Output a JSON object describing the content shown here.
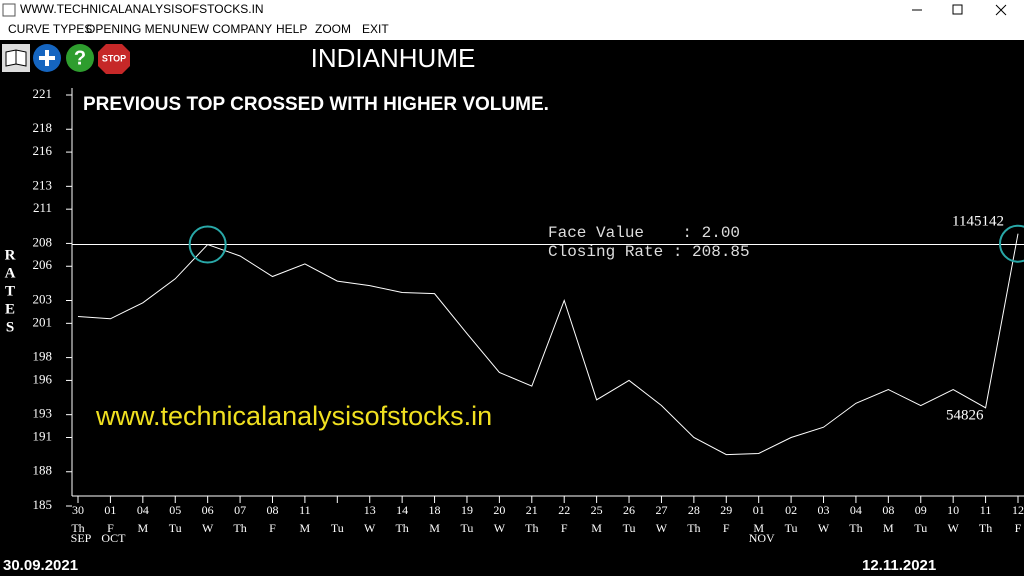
{
  "window": {
    "title": "WWW.TECHNICALANALYSISOFSTOCKS.IN"
  },
  "menu": [
    "CURVE TYPES",
    "OPENING MENU",
    "NEW COMPANY",
    "HELP",
    "ZOOM",
    "EXIT"
  ],
  "toolbar": {
    "stop": "STOP"
  },
  "chart_data": {
    "type": "line",
    "title": "INDIANHUME",
    "y_label": "RATES",
    "annotations": {
      "headline": "PREVIOUS TOP CROSSED WITH HIGHER VOLUME.",
      "website": "www.technicalanalysisofstocks.in",
      "face_value": "Face Value    : 2.00",
      "closing_rate": "Closing Rate : 208.85",
      "volume_last": "1145142",
      "volume_previous": "54826"
    },
    "start_date": "30.09.2021",
    "end_date": "12.11.2021",
    "categories": [
      "30",
      "01",
      "04",
      "05",
      "06",
      "07",
      "08",
      "11",
      null,
      "13",
      "14",
      "18",
      "19",
      "20",
      "21",
      "22",
      "25",
      "26",
      "27",
      "28",
      "29",
      "01",
      "02",
      "03",
      "04",
      "08",
      "09",
      "10",
      "11",
      "12"
    ],
    "weekdays": [
      "Th",
      "F",
      "M",
      "Tu",
      "W",
      "Th",
      "F",
      "M",
      "Tu",
      "W",
      "Th",
      "M",
      "Tu",
      "W",
      "Th",
      "F",
      "M",
      "Tu",
      "W",
      "Th",
      "F",
      "M",
      "Tu",
      "W",
      "Th",
      "M",
      "Tu",
      "W",
      "Th",
      "F"
    ],
    "months": [
      "SEP",
      "OCT",
      null,
      null,
      null,
      null,
      null,
      null,
      null,
      null,
      null,
      null,
      null,
      null,
      null,
      null,
      null,
      null,
      null,
      null,
      null,
      "NOV",
      null,
      null,
      null,
      null,
      null,
      null,
      null,
      null
    ],
    "values": [
      201.6,
      201.4,
      202.8,
      204.9,
      207.9,
      206.9,
      205.1,
      206.2,
      204.7,
      204.3,
      203.7,
      203.6,
      200.1,
      196.7,
      195.5,
      203.0,
      194.3,
      196.0,
      193.8,
      191.0,
      189.5,
      189.6,
      191.0,
      191.9,
      194.0,
      195.2,
      193.8,
      195.2,
      193.6,
      208.85
    ],
    "color": "#ffffff",
    "ylim": [
      185,
      221
    ],
    "yticks": [
      185,
      188,
      191,
      193,
      196,
      198,
      201,
      203,
      206,
      208,
      211,
      213,
      216,
      218,
      221
    ]
  }
}
